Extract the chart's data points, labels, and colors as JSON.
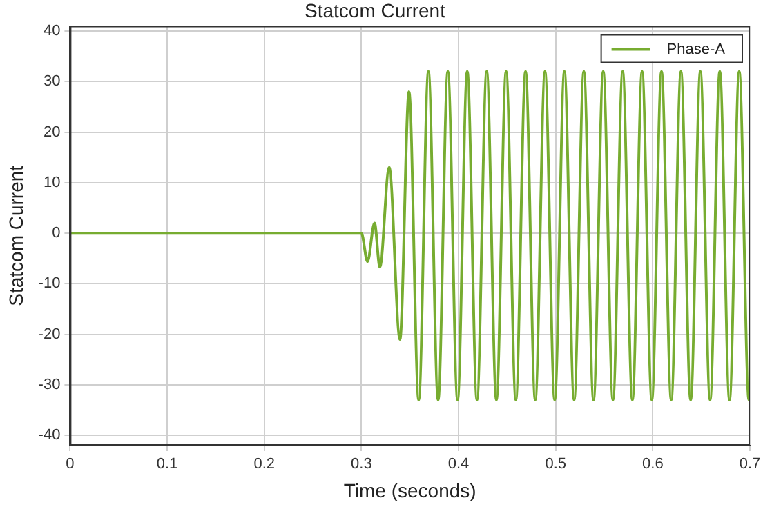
{
  "chart_data": {
    "type": "line",
    "title": "Statcom Current",
    "xlabel": "Time (seconds)",
    "ylabel": "Statcom Current",
    "xlim": [
      0,
      0.7
    ],
    "xticks": [
      0,
      0.1,
      0.2,
      0.3,
      0.4,
      0.5,
      0.6,
      0.7
    ],
    "ylim": [
      -42,
      41
    ],
    "yticks": [
      -40,
      -30,
      -20,
      -10,
      0,
      10,
      20,
      30,
      40
    ],
    "grid": true,
    "legend": "top right",
    "marker": "none",
    "line_style": "solid",
    "series": [
      {
        "name": "Phase-A",
        "color": "#77ac30",
        "x": [
          0,
          0.3,
          0.3063,
          0.3135,
          0.319,
          0.3286,
          0.3397,
          0.349,
          0.359,
          0.369,
          0.379,
          0.389,
          0.399,
          0.409,
          0.419,
          0.429,
          0.439,
          0.449,
          0.459,
          0.469,
          0.479,
          0.489,
          0.499,
          0.509,
          0.519,
          0.529,
          0.539,
          0.549,
          0.559,
          0.569,
          0.579,
          0.589,
          0.599,
          0.609,
          0.619,
          0.629,
          0.639,
          0.649,
          0.659,
          0.669,
          0.679,
          0.689,
          0.699,
          0.7
        ],
        "values": [
          0,
          0,
          -5.6,
          2,
          -6.7,
          13,
          -21,
          28,
          -33,
          32,
          -33,
          32,
          -33,
          32,
          -33,
          32,
          -33,
          32,
          -33,
          32,
          -33,
          32,
          -33,
          32,
          -33,
          32,
          -33,
          32,
          -33,
          32,
          -33,
          32,
          -33,
          32,
          -33,
          32,
          -33,
          32,
          -33,
          32,
          -33,
          32,
          -33,
          -33
        ]
      }
    ]
  }
}
